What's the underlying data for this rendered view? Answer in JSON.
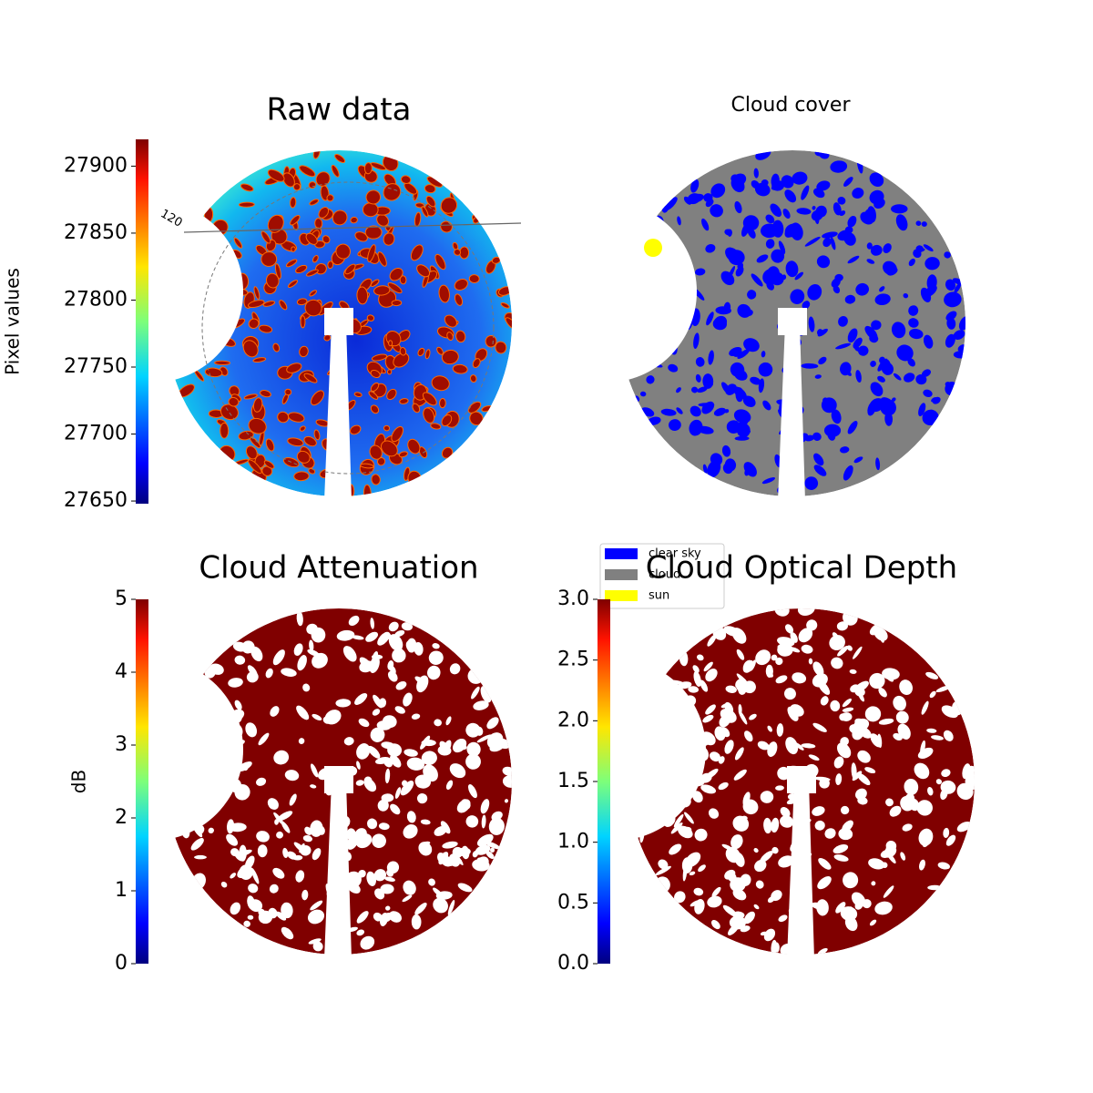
{
  "chart_data": [
    {
      "type": "image",
      "title": "Raw data",
      "colormap": "jet",
      "colorbar": {
        "label": "Pixel values",
        "lim": [
          27648,
          27920
        ],
        "ticks": [
          27650,
          27700,
          27750,
          27800,
          27850,
          27900
        ]
      },
      "annotations": [
        "120"
      ]
    },
    {
      "type": "image",
      "title": "Cloud cover",
      "legend": {
        "location": "lower left",
        "entries": [
          {
            "name": "clear sky",
            "color": "#0000ff"
          },
          {
            "name": "cloud",
            "color": "#808080"
          },
          {
            "name": "sun",
            "color": "#ffff00"
          }
        ]
      }
    },
    {
      "type": "image",
      "title": "Cloud Attenuation",
      "colormap": "jet",
      "colorbar": {
        "label": "dB",
        "lim": [
          0,
          5
        ],
        "ticks": [
          0,
          1,
          2,
          3,
          4,
          5
        ]
      }
    },
    {
      "type": "image",
      "title": "Cloud Optical Depth",
      "colormap": "jet",
      "colorbar": {
        "lim": [
          0,
          3
        ],
        "ticks": [
          {
            "value": 0,
            "label": "0.0"
          },
          0.5,
          {
            "value": 1,
            "label": "1.0"
          },
          1.5,
          {
            "value": 2,
            "label": "2.0"
          },
          2.5,
          {
            "value": 3,
            "label": "3.0"
          }
        ]
      }
    }
  ]
}
